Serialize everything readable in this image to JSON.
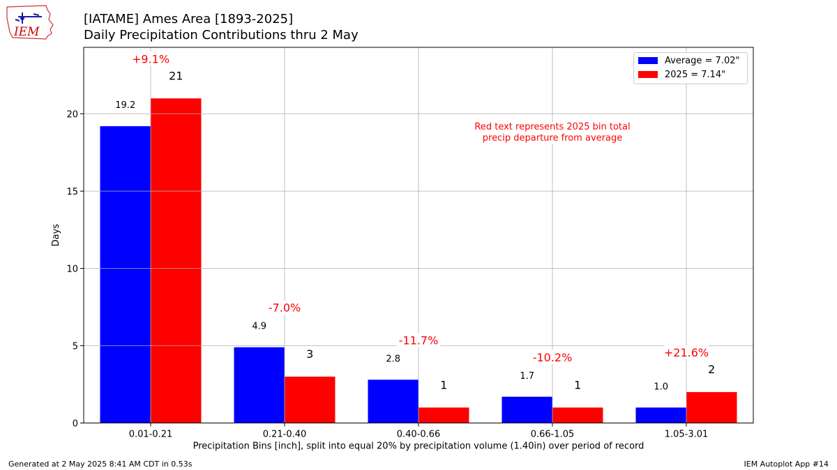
{
  "title": "[IATAME] Ames Area [1893-2025]",
  "subtitle": "Daily Precipitation Contributions thru 2 May",
  "logo": {
    "text": "IEM",
    "icon": "iem-iowa-logo",
    "color": "#cc0000"
  },
  "annotation": [
    "Red text represents 2025 bin total",
    "precip departure from average"
  ],
  "footer": {
    "left": "Generated at 2 May 2025 8:41 AM CDT in 0.53s",
    "right": "IEM Autoplot App #14"
  },
  "chart_data": {
    "type": "bar",
    "categories": [
      "0.01-0.21",
      "0.21-0.40",
      "0.40-0.66",
      "0.66-1.05",
      "1.05-3.01"
    ],
    "series": [
      {
        "name": "Average = 7.02\"",
        "color": "#0000ff",
        "values": [
          19.2,
          4.9,
          2.8,
          1.7,
          1.0
        ],
        "labels": [
          "19.2",
          "4.9",
          "2.8",
          "1.7",
          "1.0"
        ]
      },
      {
        "name": "2025 = 7.14\"",
        "color": "#ff0000",
        "values": [
          21,
          3,
          1,
          1,
          2
        ],
        "labels": [
          "21",
          "3",
          "1",
          "1",
          "2"
        ]
      }
    ],
    "departures": [
      "+9.1%",
      "-7.0%",
      "-11.7%",
      "-10.2%",
      "+21.6%"
    ],
    "departure_color": "#ff0000",
    "xlabel": "Precipitation Bins [inch], split into equal 20% by precipitation volume (1.40in) over period of record",
    "ylabel": "Days",
    "ylim": [
      0,
      24.3
    ],
    "yticks": [
      0,
      5,
      10,
      15,
      20
    ],
    "grid": true,
    "legend": "top-right"
  }
}
